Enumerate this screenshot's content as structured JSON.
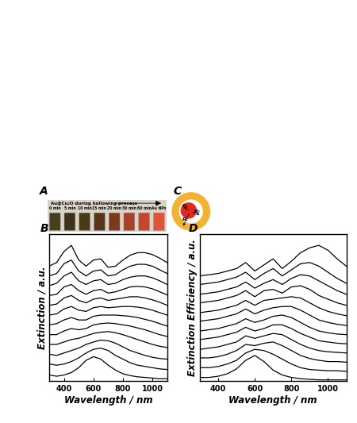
{
  "panel_a": {
    "label": "A",
    "title": "Au@Cu₂O during hollowing process",
    "vials": [
      {
        "label": "0 min",
        "color": "#4a3f1c"
      },
      {
        "label": "5 min",
        "color": "#3f3216"
      },
      {
        "label": "10 min",
        "color": "#4b3a1a"
      },
      {
        "label": "15 min",
        "color": "#5a3418"
      },
      {
        "label": "20 min",
        "color": "#7a3a1c"
      },
      {
        "label": "30 min",
        "color": "#a8402a"
      },
      {
        "label": "60 min",
        "color": "#c8442e"
      },
      {
        "label": "Au NPs",
        "color": "#e0553a"
      }
    ]
  },
  "panel_c": {
    "label": "C",
    "radii": [
      "R₁",
      "R₂",
      "R₃"
    ]
  },
  "chart_data": [
    {
      "type": "line",
      "title": "B",
      "x_label": "Wavelength / nm",
      "y_label": "Extinction / a.u.",
      "color": "#000000",
      "line_style": "solid",
      "tick_labels": "x",
      "xlim": [
        300,
        1100
      ],
      "xticks": [
        400,
        600,
        800,
        1000
      ],
      "ylim": [
        0,
        12
      ],
      "x": [
        300,
        350,
        400,
        450,
        500,
        550,
        600,
        650,
        700,
        750,
        800,
        850,
        900,
        950,
        1000,
        1050,
        1100
      ],
      "series": [
        {
          "values": [
            0.5,
            0.4,
            0.5,
            0.7,
            1.1,
            1.7,
            2.0,
            1.8,
            1.3,
            0.9,
            0.6,
            0.45,
            0.35,
            0.3,
            0.25,
            0.2,
            0.2
          ]
        },
        {
          "values": [
            1.4,
            1.3,
            1.4,
            1.6,
            1.9,
            2.3,
            2.6,
            2.7,
            2.5,
            2.1,
            1.8,
            1.5,
            1.3,
            1.2,
            1.1,
            1.0,
            0.95
          ]
        },
        {
          "values": [
            2.2,
            2.1,
            2.3,
            2.5,
            2.7,
            3.0,
            3.2,
            3.35,
            3.3,
            3.1,
            2.8,
            2.5,
            2.3,
            2.1,
            1.95,
            1.85,
            1.8
          ]
        },
        {
          "values": [
            3.0,
            3.0,
            3.2,
            3.4,
            3.5,
            3.7,
            3.9,
            4.0,
            4.05,
            3.95,
            3.8,
            3.6,
            3.4,
            3.2,
            3.0,
            2.85,
            2.75
          ]
        },
        {
          "values": [
            3.8,
            3.8,
            4.1,
            4.3,
            4.2,
            4.3,
            4.6,
            4.7,
            4.75,
            4.7,
            4.6,
            4.5,
            4.35,
            4.2,
            4.0,
            3.8,
            3.65
          ]
        },
        {
          "values": [
            4.6,
            4.7,
            5.0,
            5.2,
            5.0,
            5.0,
            5.3,
            5.4,
            5.4,
            5.4,
            5.35,
            5.3,
            5.2,
            5.05,
            4.9,
            4.7,
            4.5
          ]
        },
        {
          "values": [
            5.4,
            5.5,
            5.9,
            6.1,
            5.8,
            5.7,
            6.0,
            6.1,
            6.0,
            6.05,
            6.1,
            6.1,
            6.05,
            5.95,
            5.8,
            5.6,
            5.4
          ]
        },
        {
          "values": [
            6.2,
            6.3,
            6.8,
            7.0,
            6.6,
            6.4,
            6.7,
            6.8,
            6.6,
            6.7,
            6.8,
            6.9,
            6.9,
            6.8,
            6.65,
            6.45,
            6.2
          ]
        },
        {
          "values": [
            7.0,
            7.1,
            7.7,
            7.9,
            7.4,
            7.1,
            7.4,
            7.5,
            7.2,
            7.3,
            7.5,
            7.7,
            7.75,
            7.7,
            7.55,
            7.3,
            7.05
          ]
        },
        {
          "values": [
            7.8,
            8.0,
            8.6,
            8.9,
            8.2,
            7.9,
            8.2,
            8.3,
            7.9,
            8.0,
            8.3,
            8.5,
            8.6,
            8.6,
            8.45,
            8.2,
            7.9
          ]
        },
        {
          "values": [
            8.6,
            8.8,
            9.6,
            9.9,
            9.0,
            8.6,
            9.0,
            9.1,
            8.6,
            8.7,
            9.1,
            9.4,
            9.55,
            9.55,
            9.4,
            9.1,
            8.8
          ]
        },
        {
          "values": [
            9.4,
            9.7,
            10.6,
            11.1,
            9.9,
            9.4,
            9.9,
            10.0,
            9.3,
            9.4,
            9.9,
            10.3,
            10.5,
            10.5,
            10.35,
            10.05,
            9.7
          ]
        }
      ]
    },
    {
      "type": "line",
      "title": "D",
      "x_label": "Wavelength / nm",
      "y_label": "Extinction Efficiency / a.u.",
      "color": "#000000",
      "line_style": "solid",
      "tick_labels": "x",
      "xlim": [
        300,
        1100
      ],
      "xticks": [
        400,
        600,
        800,
        1000
      ],
      "ylim": [
        0,
        12
      ],
      "x": [
        300,
        350,
        400,
        450,
        500,
        550,
        600,
        650,
        700,
        750,
        800,
        850,
        900,
        950,
        1000,
        1050,
        1100
      ],
      "series": [
        {
          "values": [
            0.3,
            0.3,
            0.4,
            0.6,
            1.0,
            1.7,
            2.1,
            1.6,
            0.9,
            0.5,
            0.3,
            0.2,
            0.15,
            0.1,
            0.1,
            0.1,
            0.1
          ]
        },
        {
          "values": [
            1.1,
            1.1,
            1.2,
            1.4,
            1.7,
            2.3,
            2.6,
            2.5,
            2.2,
            1.8,
            1.4,
            1.1,
            0.95,
            0.9,
            0.85,
            0.85,
            0.8
          ]
        },
        {
          "values": [
            1.9,
            1.9,
            2.0,
            2.2,
            2.5,
            3.0,
            2.9,
            3.1,
            3.2,
            2.9,
            2.5,
            2.1,
            1.85,
            1.7,
            1.6,
            1.6,
            1.55
          ]
        },
        {
          "values": [
            2.6,
            2.7,
            2.8,
            3.0,
            3.2,
            3.7,
            3.5,
            3.7,
            3.9,
            3.8,
            3.4,
            3.0,
            2.7,
            2.5,
            2.4,
            2.35,
            2.3
          ]
        },
        {
          "values": [
            3.4,
            3.5,
            3.6,
            3.8,
            4.0,
            4.4,
            4.1,
            4.3,
            4.6,
            4.6,
            4.3,
            3.9,
            3.6,
            3.3,
            3.2,
            3.1,
            3.05
          ]
        },
        {
          "values": [
            4.1,
            4.2,
            4.3,
            4.5,
            4.7,
            5.1,
            4.8,
            5.0,
            5.3,
            5.4,
            5.2,
            4.8,
            4.4,
            4.1,
            3.95,
            3.85,
            3.8
          ]
        },
        {
          "values": [
            4.9,
            5.0,
            5.1,
            5.3,
            5.5,
            5.9,
            5.5,
            5.8,
            6.0,
            6.1,
            6.1,
            5.8,
            5.4,
            5.0,
            4.8,
            4.65,
            4.55
          ]
        },
        {
          "values": [
            5.6,
            5.7,
            5.8,
            6.0,
            6.2,
            6.6,
            6.2,
            6.6,
            6.7,
            6.8,
            6.9,
            6.8,
            6.4,
            6.0,
            5.7,
            5.5,
            5.35
          ]
        },
        {
          "values": [
            6.4,
            6.5,
            6.6,
            6.8,
            7.0,
            7.4,
            6.9,
            7.4,
            7.5,
            7.2,
            7.7,
            7.8,
            7.5,
            7.0,
            6.7,
            6.4,
            6.2
          ]
        },
        {
          "values": [
            7.1,
            7.2,
            7.3,
            7.5,
            7.7,
            8.1,
            7.6,
            8.0,
            8.3,
            7.9,
            8.4,
            8.7,
            8.6,
            8.2,
            7.8,
            7.4,
            7.1
          ]
        },
        {
          "values": [
            7.9,
            8.0,
            8.1,
            8.3,
            8.5,
            8.9,
            8.3,
            8.8,
            9.2,
            8.6,
            9.1,
            9.6,
            9.7,
            9.4,
            8.9,
            8.4,
            8.0
          ]
        },
        {
          "values": [
            8.6,
            8.7,
            8.8,
            9.0,
            9.2,
            9.7,
            9.0,
            9.5,
            10.0,
            9.2,
            9.8,
            10.5,
            10.9,
            11.1,
            10.7,
            10.0,
            9.4
          ]
        }
      ]
    }
  ]
}
